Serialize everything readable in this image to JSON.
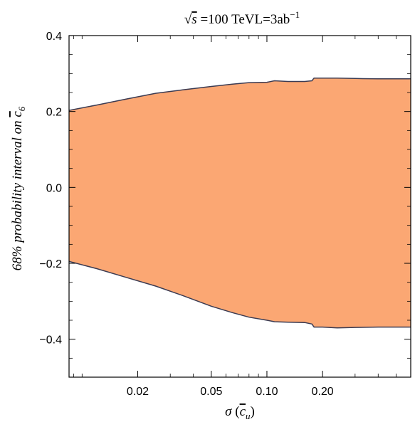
{
  "chart_data": {
    "type": "area",
    "title": {
      "sqrt_symbol": "√",
      "sqrt_var": "s",
      "energy": " =100 TeV",
      "lumi_prefix": "L=3ab",
      "lumi_exp": "−1"
    },
    "xlabel": {
      "sigma": "σ",
      "open": " (",
      "var": "c",
      "sub": "u",
      "close": ")"
    },
    "ylabel": {
      "text": "68% probability interval on ",
      "var": "c",
      "sub": "6"
    },
    "x_scale": "log",
    "xlim": [
      0.0085,
      0.6
    ],
    "ylim": [
      -0.5,
      0.4
    ],
    "grid": false,
    "legend": "none",
    "x_ticks": [
      {
        "value": 0.02,
        "label": "0.02"
      },
      {
        "value": 0.05,
        "label": "0.05"
      },
      {
        "value": 0.1,
        "label": "0.10"
      },
      {
        "value": 0.2,
        "label": "0.20"
      }
    ],
    "y_ticks": [
      {
        "value": 0.4,
        "label": "0.4"
      },
      {
        "value": 0.2,
        "label": "0.2"
      },
      {
        "value": 0.0,
        "label": "0.0"
      },
      {
        "value": -0.2,
        "label": "−0.2"
      },
      {
        "value": -0.4,
        "label": "−0.4"
      }
    ],
    "band": {
      "x": [
        0.0085,
        0.012,
        0.017,
        0.025,
        0.035,
        0.05,
        0.065,
        0.08,
        0.1,
        0.11,
        0.13,
        0.16,
        0.175,
        0.18,
        0.2,
        0.24,
        0.3,
        0.4,
        0.5,
        0.6
      ],
      "upper": [
        0.203,
        0.217,
        0.232,
        0.248,
        0.257,
        0.266,
        0.272,
        0.276,
        0.277,
        0.281,
        0.279,
        0.279,
        0.281,
        0.288,
        0.288,
        0.288,
        0.287,
        0.286,
        0.286,
        0.286
      ],
      "lower": [
        -0.195,
        -0.214,
        -0.236,
        -0.26,
        -0.285,
        -0.313,
        -0.33,
        -0.342,
        -0.35,
        -0.354,
        -0.355,
        -0.356,
        -0.36,
        -0.368,
        -0.368,
        -0.37,
        -0.369,
        -0.368,
        -0.368,
        -0.368
      ]
    },
    "colors": {
      "fill": "#fba773",
      "edge": "#3b3b52",
      "frame": "#000000"
    }
  }
}
